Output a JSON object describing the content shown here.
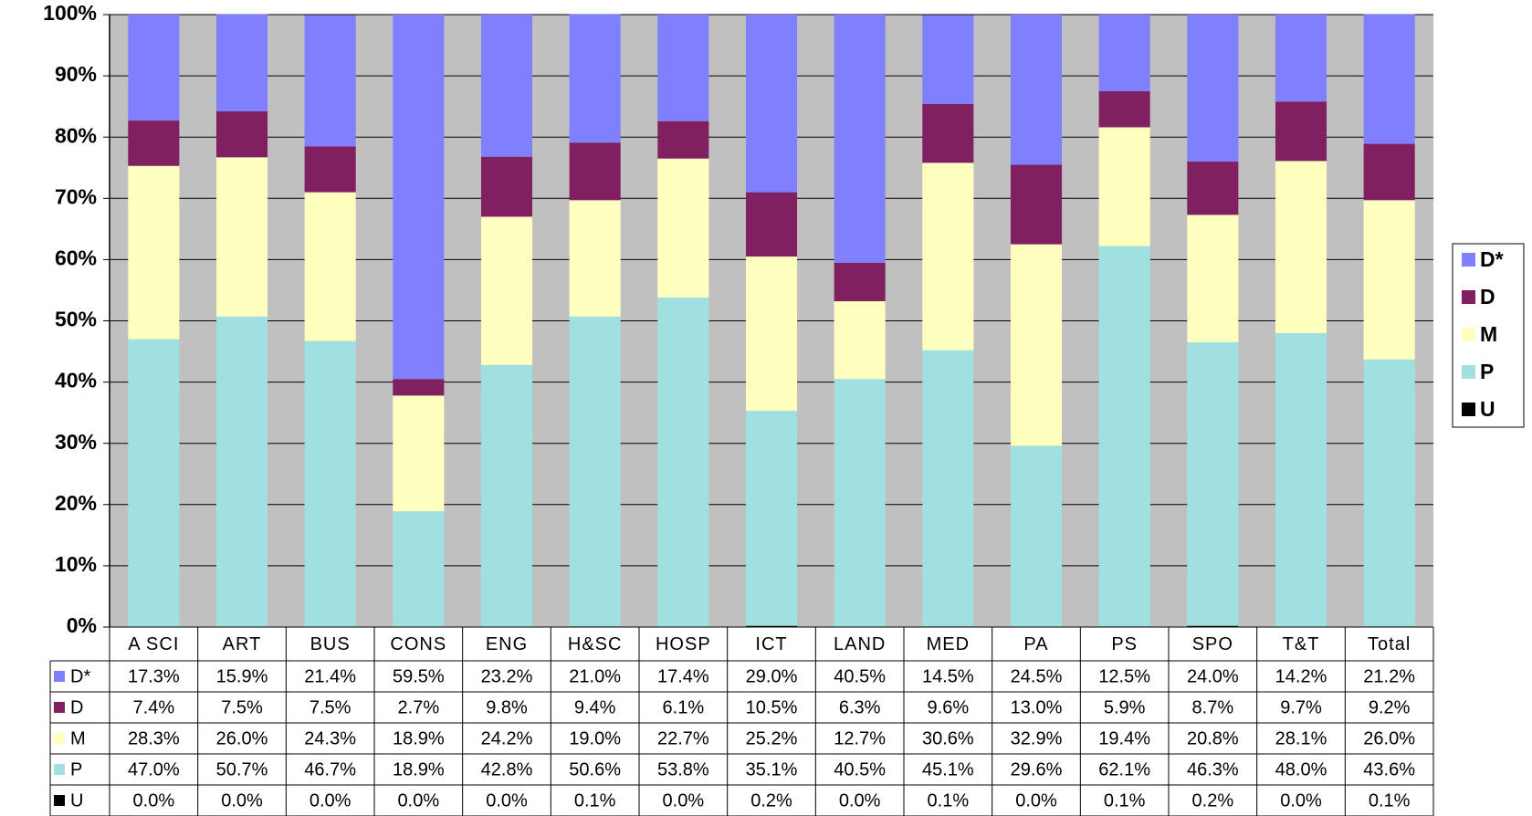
{
  "chart_data": {
    "type": "stacked_bar",
    "categories": [
      "A SCI",
      "ART",
      "BUS",
      "CONS",
      "ENG",
      "H&SC",
      "HOSP",
      "ICT",
      "LAND",
      "MED",
      "PA",
      "PS",
      "SPO",
      "T&T",
      "Total"
    ],
    "series": [
      {
        "name": "D*",
        "color": "#8080ff",
        "values": [
          17.3,
          15.9,
          21.4,
          59.5,
          23.2,
          21.0,
          17.4,
          29.0,
          40.5,
          14.5,
          24.5,
          12.5,
          24.0,
          14.2,
          21.2
        ],
        "value_labels": [
          "17.3%",
          "15.9%",
          "21.4%",
          "59.5%",
          "23.2%",
          "21.0%",
          "17.4%",
          "29.0%",
          "40.5%",
          "14.5%",
          "24.5%",
          "12.5%",
          "24.0%",
          "14.2%",
          "21.2%"
        ]
      },
      {
        "name": "D",
        "color": "#802060",
        "values": [
          7.4,
          7.5,
          7.5,
          2.7,
          9.8,
          9.4,
          6.1,
          10.5,
          6.3,
          9.6,
          13.0,
          5.9,
          8.7,
          9.7,
          9.2
        ],
        "value_labels": [
          "7.4%",
          "7.5%",
          "7.5%",
          "2.7%",
          "9.8%",
          "9.4%",
          "6.1%",
          "10.5%",
          "6.3%",
          "9.6%",
          "13.0%",
          "5.9%",
          "8.7%",
          "9.7%",
          "9.2%"
        ]
      },
      {
        "name": "M",
        "color": "#ffffc0",
        "values": [
          28.3,
          26.0,
          24.3,
          18.9,
          24.2,
          19.0,
          22.7,
          25.2,
          12.7,
          30.6,
          32.9,
          19.4,
          20.8,
          28.1,
          26.0
        ],
        "value_labels": [
          "28.3%",
          "26.0%",
          "24.3%",
          "18.9%",
          "24.2%",
          "19.0%",
          "22.7%",
          "25.2%",
          "12.7%",
          "30.6%",
          "32.9%",
          "19.4%",
          "20.8%",
          "28.1%",
          "26.0%"
        ]
      },
      {
        "name": "P",
        "color": "#a0e0e0",
        "values": [
          47.0,
          50.7,
          46.7,
          18.9,
          42.8,
          50.6,
          53.8,
          35.1,
          40.5,
          45.1,
          29.6,
          62.1,
          46.3,
          48.0,
          43.6
        ],
        "value_labels": [
          "47.0%",
          "50.7%",
          "46.7%",
          "18.9%",
          "42.8%",
          "50.6%",
          "53.8%",
          "35.1%",
          "40.5%",
          "45.1%",
          "29.6%",
          "62.1%",
          "46.3%",
          "48.0%",
          "43.6%"
        ]
      },
      {
        "name": "U",
        "color": "#000000",
        "values": [
          0.0,
          0.0,
          0.0,
          0.0,
          0.0,
          0.1,
          0.0,
          0.2,
          0.0,
          0.1,
          0.0,
          0.1,
          0.2,
          0.0,
          0.1
        ],
        "value_labels": [
          "0.0%",
          "0.0%",
          "0.0%",
          "0.0%",
          "0.0%",
          "0.1%",
          "0.0%",
          "0.2%",
          "0.0%",
          "0.1%",
          "0.0%",
          "0.1%",
          "0.2%",
          "0.0%",
          "0.1%"
        ]
      }
    ],
    "ylim": [
      0,
      100
    ],
    "yticks": [
      {
        "value": 0,
        "label": "0%"
      },
      {
        "value": 10,
        "label": "10%"
      },
      {
        "value": 20,
        "label": "20%"
      },
      {
        "value": 30,
        "label": "30%"
      },
      {
        "value": 40,
        "label": "40%"
      },
      {
        "value": 50,
        "label": "50%"
      },
      {
        "value": 60,
        "label": "60%"
      },
      {
        "value": 70,
        "label": "70%"
      },
      {
        "value": 80,
        "label": "80%"
      },
      {
        "value": 90,
        "label": "90%"
      },
      {
        "value": 100,
        "label": "100%"
      }
    ],
    "grid": true,
    "legend": "right",
    "plot_background": "#c0c0c0"
  }
}
